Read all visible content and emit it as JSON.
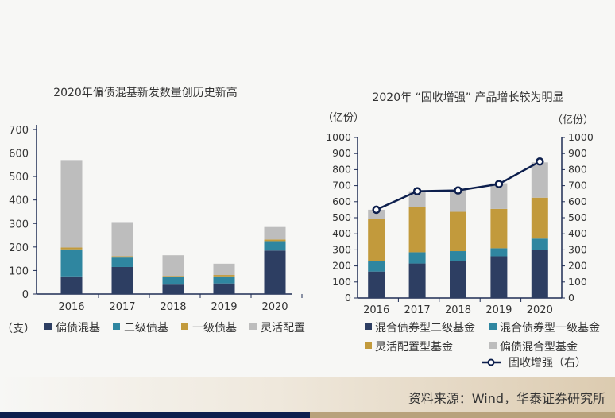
{
  "colors": {
    "navy": "#2d3e62",
    "teal": "#2f86a0",
    "gold": "#c29a3c",
    "grey": "#bdbdbd",
    "line": "#0d1f4d",
    "axis": "#1f2d55"
  },
  "chart_data": [
    {
      "type": "bar",
      "stacked": true,
      "title": "2020年偏债混基新发数量创历史新高",
      "unit": "（支）",
      "categories": [
        "2016",
        "2017",
        "2018",
        "2019",
        "2020"
      ],
      "yticks": [
        0,
        100,
        200,
        300,
        400,
        500,
        600,
        700
      ],
      "ylim": [
        0,
        720
      ],
      "series": [
        {
          "name": "偏债混基",
          "values": [
            75,
            115,
            40,
            45,
            185
          ]
        },
        {
          "name": "二级债基",
          "values": [
            115,
            40,
            32,
            30,
            40
          ]
        },
        {
          "name": "一级债基",
          "values": [
            8,
            6,
            5,
            6,
            7
          ]
        },
        {
          "name": "灵活配置",
          "values": [
            372,
            145,
            88,
            48,
            53
          ]
        }
      ]
    },
    {
      "type": "bar",
      "stacked": true,
      "title": "2020年 “固收增强” 产品增长较为明显",
      "left_unit": "（亿份）",
      "right_unit": "（亿份）",
      "categories": [
        "2016",
        "2017",
        "2018",
        "2019",
        "2020"
      ],
      "yticks": [
        0,
        100,
        200,
        300,
        400,
        500,
        600,
        700,
        800,
        900,
        1000
      ],
      "ylim": [
        0,
        1000
      ],
      "series": [
        {
          "name": "混合债券型二级基金",
          "values": [
            165,
            215,
            230,
            260,
            300
          ]
        },
        {
          "name": "混合债券型一级基金",
          "values": [
            65,
            70,
            62,
            50,
            70
          ]
        },
        {
          "name": "灵活配置型基金",
          "values": [
            265,
            280,
            245,
            245,
            255
          ]
        },
        {
          "name": "偏债混合型基金",
          "values": [
            55,
            100,
            135,
            160,
            220
          ]
        }
      ],
      "line": {
        "name": "固收增强（右）",
        "values": [
          550,
          665,
          670,
          710,
          850
        ]
      }
    }
  ],
  "source": "资料来源：Wind，华泰证券研究所"
}
